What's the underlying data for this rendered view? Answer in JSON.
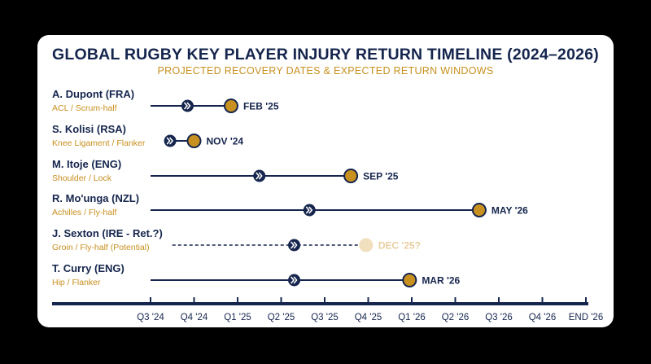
{
  "title": "GLOBAL RUGBY KEY PLAYER INJURY RETURN TIMELINE (2024–2026)",
  "subtitle": "PROJECTED RECOVERY DATES & EXPECTED RETURN WINDOWS",
  "colors": {
    "navy": "#15254d",
    "gold": "#c8901f",
    "gold_faded": "#f1dfbd",
    "faded_text": "#e8cf9f",
    "muted_text": "#c8901f"
  },
  "icons": {
    "midpoint_marker": "chevron-right-icon",
    "return_marker": "filled-circle"
  },
  "chart_data": {
    "type": "timeline",
    "x_axis": {
      "ticks": [
        "Q3 '24",
        "Q4 '24",
        "Q1 '25",
        "Q2 '25",
        "Q3 '25",
        "Q4 '25",
        "Q1 '26",
        "Q2 '26",
        "Q3 '26",
        "Q4 '26",
        "END '26"
      ],
      "range": [
        "Q3 '24",
        "END '26"
      ]
    },
    "players": [
      {
        "name": "A. Dupont (FRA)",
        "injury": "ACL / Scrum-half",
        "start": 0,
        "midpoint": 0.85,
        "return": 1.85,
        "return_label": "FEB '25",
        "status": "projected"
      },
      {
        "name": "S. Kolisi (RSA)",
        "injury": "Knee Ligament / Flanker",
        "start": 0.45,
        "midpoint": 0.45,
        "return": 1.0,
        "return_label": "NOV '24",
        "status": "projected"
      },
      {
        "name": "M. Itoje (ENG)",
        "injury": "Shoulder / Lock",
        "start": 0,
        "midpoint": 2.5,
        "return": 4.6,
        "return_label": "SEP '25",
        "status": "projected"
      },
      {
        "name": "R. Mo'unga (NZL)",
        "injury": "Achilles / Fly-half",
        "start": 0,
        "midpoint": 3.65,
        "return": 7.55,
        "return_label": "MAY '26",
        "status": "projected"
      },
      {
        "name": "J. Sexton (IRE - Ret.?)",
        "injury": "Groin / Fly-half (Potential)",
        "start": 0.5,
        "midpoint": 3.3,
        "return": 4.95,
        "return_label": "DEC '25?",
        "status": "potential"
      },
      {
        "name": "T. Curry (ENG)",
        "injury": "Hip / Flanker",
        "start": 0,
        "midpoint": 3.3,
        "return": 5.95,
        "return_label": "MAR '26",
        "status": "projected"
      }
    ]
  }
}
